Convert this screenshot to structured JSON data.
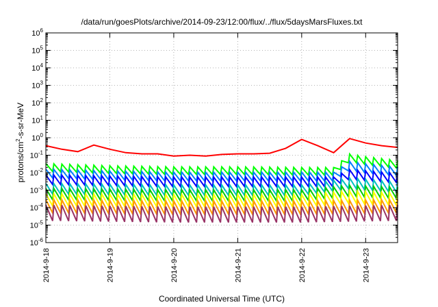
{
  "chart_data": {
    "type": "line",
    "title": "/data/run/goesPlots/archive/2014-09-23/12:00/flux/../flux/5daysMarsFluxes.txt",
    "xlabel": "Coordinated Universal Time (UTC)",
    "ylabel": "protons/cm²-s-sr-MeV",
    "ylabel_parts": {
      "base": "protons/cm",
      "sup": "2",
      "rest": "-s-sr-MeV"
    },
    "xlim": [
      "2014-09-18",
      "2014-09-23 12:00"
    ],
    "ylim": [
      1e-06,
      1000000.0
    ],
    "yscale": "log",
    "grid": true,
    "x_ticks": [
      "2014-9-18",
      "2014-9-19",
      "2014-9-20",
      "2014-9-21",
      "2014-9-22",
      "2014-9-23"
    ],
    "y_ticks": [
      {
        "value": 1e-06,
        "base": "10",
        "exp": "-6"
      },
      {
        "value": 1e-05,
        "base": "10",
        "exp": "-5"
      },
      {
        "value": 0.0001,
        "base": "10",
        "exp": "-4"
      },
      {
        "value": 0.001,
        "base": "10",
        "exp": "-3"
      },
      {
        "value": 0.01,
        "base": "10",
        "exp": "-2"
      },
      {
        "value": 0.1,
        "base": "10",
        "exp": "-1"
      },
      {
        "value": 1,
        "base": "10",
        "exp": "0"
      },
      {
        "value": 10.0,
        "base": "10",
        "exp": "1"
      },
      {
        "value": 100.0,
        "base": "10",
        "exp": "2"
      },
      {
        "value": 1000.0,
        "base": "10",
        "exp": "3"
      },
      {
        "value": 10000.0,
        "base": "10",
        "exp": "4"
      },
      {
        "value": 100000.0,
        "base": "10",
        "exp": "5"
      },
      {
        "value": 1000000.0,
        "base": "10",
        "exp": "6"
      }
    ],
    "series": [
      {
        "color": "#ff0000",
        "x": [
          "2014-09-18 00:00",
          "2014-09-18 06:00",
          "2014-09-18 12:00",
          "2014-09-18 18:00",
          "2014-09-19 00:00",
          "2014-09-19 06:00",
          "2014-09-19 12:00",
          "2014-09-19 18:00",
          "2014-09-20 00:00",
          "2014-09-20 06:00",
          "2014-09-20 12:00",
          "2014-09-20 18:00",
          "2014-09-21 00:00",
          "2014-09-21 06:00",
          "2014-09-21 12:00",
          "2014-09-21 18:00",
          "2014-09-22 00:00",
          "2014-09-22 06:00",
          "2014-09-22 12:00",
          "2014-09-22 18:00",
          "2014-09-23 00:00",
          "2014-09-23 06:00",
          "2014-09-23 12:00"
        ],
        "y": [
          0.35,
          0.22,
          0.16,
          0.38,
          0.22,
          0.14,
          0.12,
          0.12,
          0.09,
          0.1,
          0.09,
          0.11,
          0.12,
          0.12,
          0.13,
          0.25,
          0.8,
          0.35,
          0.14,
          0.9,
          0.5,
          0.35,
          0.28
        ]
      },
      {
        "color": "#00ff00",
        "x": [
          "2014-09-18 00:00",
          "2014-09-19 00:00",
          "2014-09-20 00:00",
          "2014-09-21 00:00",
          "2014-09-22 00:00",
          "2014-09-22 12:00",
          "2014-09-22 18:00",
          "2014-09-23 00:00",
          "2014-09-23 12:00"
        ],
        "y": [
          0.02,
          0.015,
          0.013,
          0.013,
          0.012,
          0.012,
          0.07,
          0.05,
          0.03
        ]
      },
      {
        "color": "#0080ff",
        "x": [
          "2014-09-18 00:00",
          "2014-09-19 00:00",
          "2014-09-20 00:00",
          "2014-09-21 00:00",
          "2014-09-22 00:00",
          "2014-09-22 12:00",
          "2014-09-22 18:00",
          "2014-09-23 00:00",
          "2014-09-23 12:00"
        ],
        "y": [
          0.009,
          0.007,
          0.006,
          0.006,
          0.006,
          0.006,
          0.025,
          0.018,
          0.012
        ]
      },
      {
        "color": "#0000ff",
        "x": [
          "2014-09-18 00:00",
          "2014-09-20 00:00",
          "2014-09-22 00:00",
          "2014-09-22 12:00",
          "2014-09-22 18:00",
          "2014-09-23 12:00"
        ],
        "y": [
          0.004,
          0.003,
          0.003,
          0.003,
          0.008,
          0.005
        ]
      },
      {
        "color": "#00c0c0",
        "x": [
          "2014-09-18 00:00",
          "2014-09-20 00:00",
          "2014-09-22 00:00",
          "2014-09-22 18:00",
          "2014-09-23 12:00"
        ],
        "y": [
          0.0012,
          0.001,
          0.001,
          0.0025,
          0.0015
        ]
      },
      {
        "color": "#00cc00",
        "x": [
          "2014-09-18 00:00",
          "2014-09-20 00:00",
          "2014-09-22 00:00",
          "2014-09-22 18:00",
          "2014-09-23 12:00"
        ],
        "y": [
          0.0006,
          0.0005,
          0.0005,
          0.0009,
          0.0007
        ]
      },
      {
        "color": "#ffff00",
        "x": [
          "2014-09-18 00:00",
          "2014-09-20 00:00",
          "2014-09-22 00:00",
          "2014-09-22 18:00",
          "2014-09-23 12:00"
        ],
        "y": [
          0.00028,
          0.00025,
          0.00025,
          0.0004,
          0.0003
        ]
      },
      {
        "color": "#ff9900",
        "x": [
          "2014-09-18 00:00",
          "2014-09-20 00:00",
          "2014-09-22 00:00",
          "2014-09-23 12:00"
        ],
        "y": [
          0.00012,
          0.0001,
          0.0001,
          0.00012
        ]
      },
      {
        "color": "#993366",
        "x": [
          "2014-09-18 00:00",
          "2014-09-20 00:00",
          "2014-09-22 00:00",
          "2014-09-23 12:00"
        ],
        "y": [
          5e-05,
          4e-05,
          4e-05,
          5e-05
        ]
      }
    ]
  }
}
